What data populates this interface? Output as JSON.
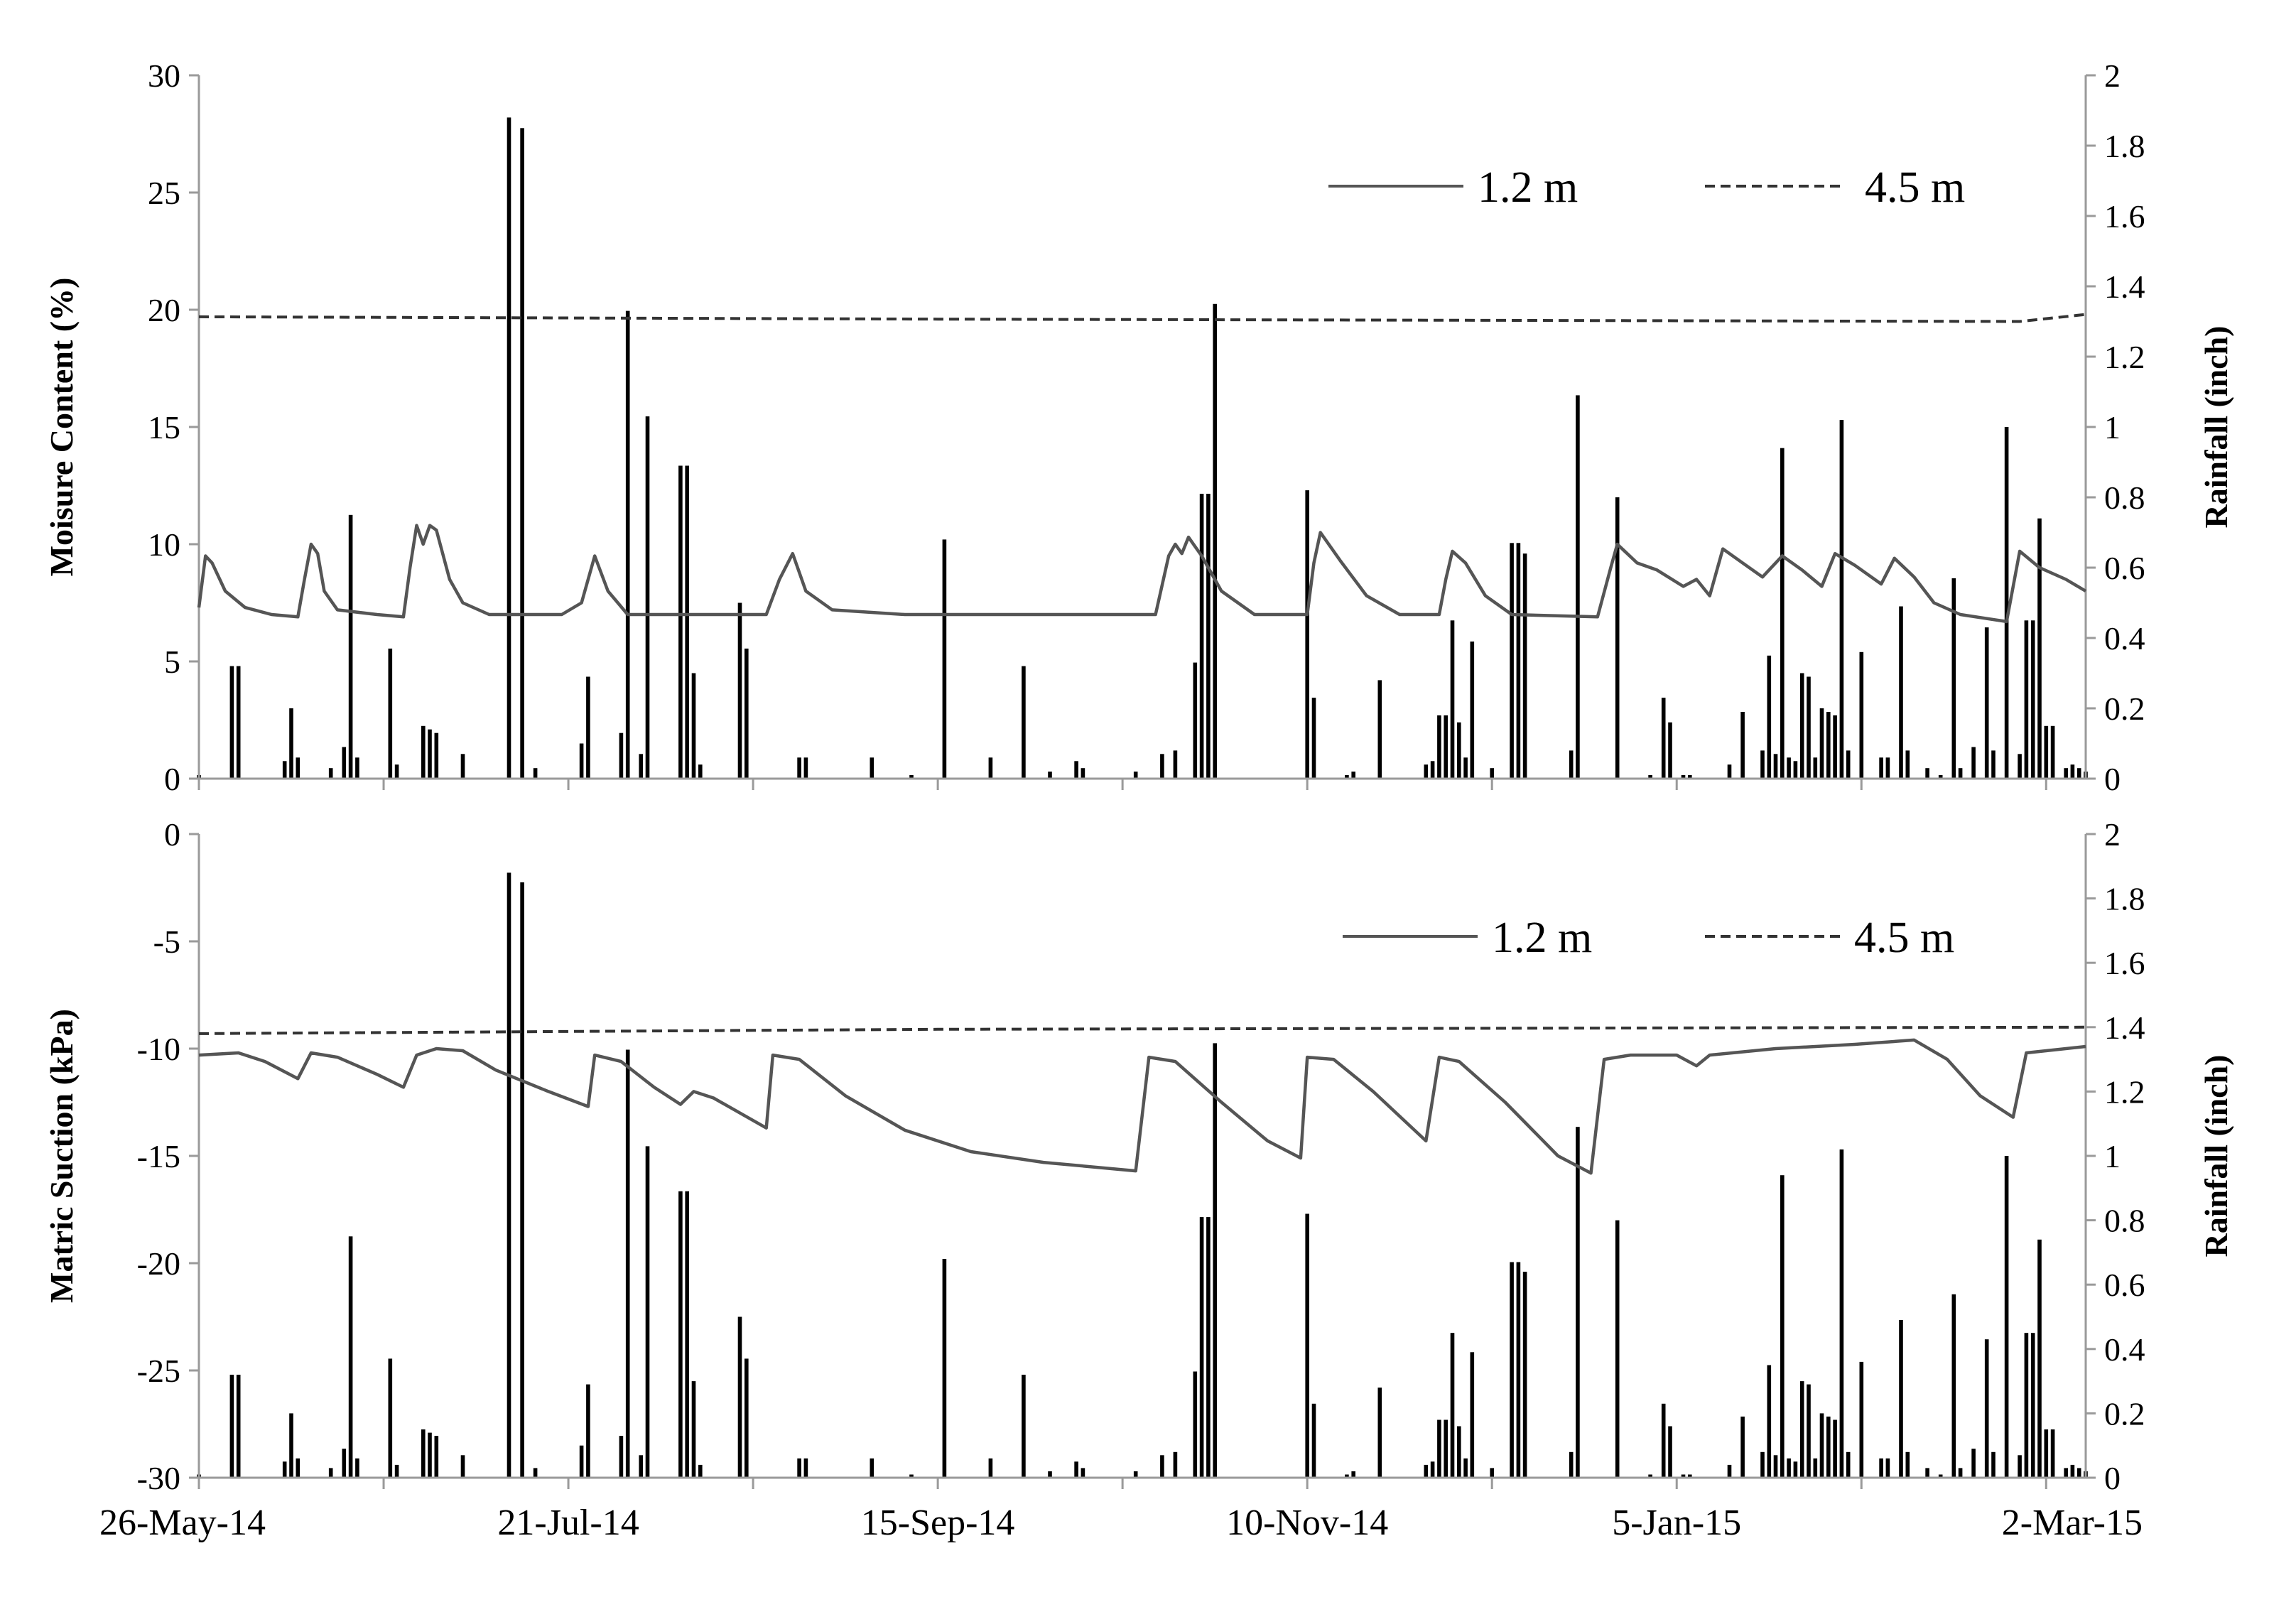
{
  "chart_data": [
    {
      "type": "line",
      "panel": "top",
      "ylabel": "Moisure Content (%)",
      "y2label": "Rainfall (inch)",
      "ylim": [
        0,
        30
      ],
      "y_ticks": [
        0,
        5,
        10,
        15,
        20,
        25,
        30
      ],
      "y2lim": [
        0,
        2
      ],
      "y2_ticks": [
        0,
        0.2,
        0.4,
        0.6,
        0.8,
        1,
        1.2,
        1.4,
        1.6,
        1.8,
        2
      ],
      "y2_tick_labels": [
        "0",
        "0.2",
        "0.4",
        "0.6",
        "0.8",
        "1",
        "1.2",
        "1.4",
        "1.6",
        "1.8",
        "2"
      ],
      "grid": false,
      "legend_position": "top-right",
      "series": [
        {
          "name": "1.2 m",
          "style": "solid",
          "color": "#555555",
          "points": [
            [
              "2014-05-26",
              7.3
            ],
            [
              "2014-05-27",
              9.5
            ],
            [
              "2014-05-28",
              9.2
            ],
            [
              "2014-05-30",
              8.0
            ],
            [
              "2014-06-02",
              7.3
            ],
            [
              "2014-06-06",
              7.0
            ],
            [
              "2014-06-10",
              6.9
            ],
            [
              "2014-06-11",
              8.5
            ],
            [
              "2014-06-12",
              10.0
            ],
            [
              "2014-06-13",
              9.6
            ],
            [
              "2014-06-14",
              8.0
            ],
            [
              "2014-06-16",
              7.2
            ],
            [
              "2014-06-22",
              7.0
            ],
            [
              "2014-06-26",
              6.9
            ],
            [
              "2014-06-27",
              9.0
            ],
            [
              "2014-06-28",
              10.8
            ],
            [
              "2014-06-29",
              10.0
            ],
            [
              "2014-06-30",
              10.8
            ],
            [
              "2014-07-01",
              10.6
            ],
            [
              "2014-07-03",
              8.5
            ],
            [
              "2014-07-05",
              7.5
            ],
            [
              "2014-07-09",
              7.0
            ],
            [
              "2014-07-20",
              7.0
            ],
            [
              "2014-07-23",
              7.5
            ],
            [
              "2014-07-25",
              9.5
            ],
            [
              "2014-07-27",
              8.0
            ],
            [
              "2014-07-30",
              7.0
            ],
            [
              "2014-08-20",
              7.0
            ],
            [
              "2014-08-22",
              8.5
            ],
            [
              "2014-08-24",
              9.6
            ],
            [
              "2014-08-26",
              8.0
            ],
            [
              "2014-08-30",
              7.2
            ],
            [
              "2014-09-10",
              7.0
            ],
            [
              "2014-10-18",
              7.0
            ],
            [
              "2014-10-20",
              9.5
            ],
            [
              "2014-10-21",
              10.0
            ],
            [
              "2014-10-22",
              9.6
            ],
            [
              "2014-10-23",
              10.3
            ],
            [
              "2014-10-25",
              9.5
            ],
            [
              "2014-10-28",
              8.0
            ],
            [
              "2014-11-02",
              7.0
            ],
            [
              "2014-11-10",
              7.0
            ],
            [
              "2014-11-11",
              9.2
            ],
            [
              "2014-11-12",
              10.5
            ],
            [
              "2014-11-15",
              9.3
            ],
            [
              "2014-11-19",
              7.8
            ],
            [
              "2014-11-24",
              7.0
            ],
            [
              "2014-11-30",
              7.0
            ],
            [
              "2014-12-01",
              8.5
            ],
            [
              "2014-12-02",
              9.7
            ],
            [
              "2014-12-04",
              9.2
            ],
            [
              "2014-12-07",
              7.8
            ],
            [
              "2014-12-11",
              7.0
            ],
            [
              "2014-12-24",
              6.9
            ],
            [
              "2014-12-26",
              9.0
            ],
            [
              "2014-12-27",
              10.0
            ],
            [
              "2014-12-30",
              9.2
            ],
            [
              "2015-01-02",
              8.9
            ],
            [
              "2015-01-06",
              8.2
            ],
            [
              "2015-01-08",
              8.5
            ],
            [
              "2015-01-10",
              7.8
            ],
            [
              "2015-01-12",
              9.8
            ],
            [
              "2015-01-15",
              9.2
            ],
            [
              "2015-01-18",
              8.6
            ],
            [
              "2015-01-21",
              9.5
            ],
            [
              "2015-01-24",
              8.9
            ],
            [
              "2015-01-27",
              8.2
            ],
            [
              "2015-01-29",
              9.6
            ],
            [
              "2015-02-01",
              9.1
            ],
            [
              "2015-02-05",
              8.3
            ],
            [
              "2015-02-07",
              9.4
            ],
            [
              "2015-02-10",
              8.6
            ],
            [
              "2015-02-13",
              7.5
            ],
            [
              "2015-02-17",
              7.0
            ],
            [
              "2015-02-24",
              6.7
            ],
            [
              "2015-02-26",
              9.7
            ],
            [
              "2015-03-01",
              9.0
            ],
            [
              "2015-03-05",
              8.5
            ],
            [
              "2015-03-08",
              8.0
            ]
          ]
        },
        {
          "name": "4.5 m",
          "style": "dashed",
          "color": "#333333",
          "points": [
            [
              "2014-05-26",
              19.7
            ],
            [
              "2014-09-15",
              19.6
            ],
            [
              "2015-02-26",
              19.5
            ],
            [
              "2015-03-08",
              19.8
            ]
          ]
        }
      ]
    },
    {
      "type": "line",
      "panel": "bottom",
      "ylabel": "Matric Suction (kPa)",
      "y2label": "Rainfall (inch)",
      "ylim": [
        -30,
        0
      ],
      "y_ticks": [
        -30,
        -25,
        -20,
        -15,
        -10,
        -5,
        0
      ],
      "y2lim": [
        0,
        2
      ],
      "y2_ticks": [
        0,
        0.2,
        0.4,
        0.6,
        0.8,
        1,
        1.2,
        1.4,
        1.6,
        1.8,
        2
      ],
      "y2_tick_labels": [
        "0",
        "0.2",
        "0.4",
        "0.6",
        "0.8",
        "1",
        "1.2",
        "1.4",
        "1.6",
        "1.8",
        "2"
      ],
      "grid": false,
      "legend_position": "top-right",
      "series": [
        {
          "name": "1.2 m",
          "style": "solid",
          "color": "#555555",
          "points": [
            [
              "2014-05-26",
              -10.3
            ],
            [
              "2014-06-01",
              -10.2
            ],
            [
              "2014-06-05",
              -10.6
            ],
            [
              "2014-06-10",
              -11.4
            ],
            [
              "2014-06-12",
              -10.2
            ],
            [
              "2014-06-16",
              -10.4
            ],
            [
              "2014-06-22",
              -11.2
            ],
            [
              "2014-06-26",
              -11.8
            ],
            [
              "2014-06-28",
              -10.3
            ],
            [
              "2014-07-01",
              -10.0
            ],
            [
              "2014-07-05",
              -10.1
            ],
            [
              "2014-07-10",
              -11.0
            ],
            [
              "2014-07-18",
              -12.0
            ],
            [
              "2014-07-24",
              -12.7
            ],
            [
              "2014-07-25",
              -10.3
            ],
            [
              "2014-07-29",
              -10.6
            ],
            [
              "2014-08-03",
              -11.8
            ],
            [
              "2014-08-07",
              -12.6
            ],
            [
              "2014-08-09",
              -12.0
            ],
            [
              "2014-08-12",
              -12.3
            ],
            [
              "2014-08-20",
              -13.7
            ],
            [
              "2014-08-21",
              -10.3
            ],
            [
              "2014-08-25",
              -10.5
            ],
            [
              "2014-09-01",
              -12.2
            ],
            [
              "2014-09-10",
              -13.8
            ],
            [
              "2014-09-20",
              -14.8
            ],
            [
              "2014-10-01",
              -15.3
            ],
            [
              "2014-10-15",
              -15.7
            ],
            [
              "2014-10-17",
              -10.4
            ],
            [
              "2014-10-21",
              -10.6
            ],
            [
              "2014-10-28",
              -12.5
            ],
            [
              "2014-11-04",
              -14.3
            ],
            [
              "2014-11-09",
              -15.1
            ],
            [
              "2014-11-10",
              -10.4
            ],
            [
              "2014-11-14",
              -10.5
            ],
            [
              "2014-11-20",
              -12.0
            ],
            [
              "2014-11-28",
              -14.3
            ],
            [
              "2014-11-30",
              -10.4
            ],
            [
              "2014-12-03",
              -10.6
            ],
            [
              "2014-12-10",
              -12.5
            ],
            [
              "2014-12-18",
              -15.0
            ],
            [
              "2014-12-23",
              -15.8
            ],
            [
              "2014-12-25",
              -10.5
            ],
            [
              "2014-12-29",
              -10.3
            ],
            [
              "2015-01-05",
              -10.3
            ],
            [
              "2015-01-08",
              -10.8
            ],
            [
              "2015-01-10",
              -10.3
            ],
            [
              "2015-01-20",
              -10.0
            ],
            [
              "2015-02-01",
              -9.8
            ],
            [
              "2015-02-10",
              -9.6
            ],
            [
              "2015-02-15",
              -10.5
            ],
            [
              "2015-02-20",
              -12.2
            ],
            [
              "2015-02-25",
              -13.2
            ],
            [
              "2015-02-27",
              -10.2
            ],
            [
              "2015-03-08",
              -9.9
            ]
          ]
        },
        {
          "name": "4.5 m",
          "style": "dashed",
          "color": "#333333",
          "points": [
            [
              "2014-05-26",
              -9.3
            ],
            [
              "2014-09-15",
              -9.1
            ],
            [
              "2015-03-08",
              -9.0
            ]
          ]
        }
      ]
    }
  ],
  "rainfall": {
    "series_name": "Rainfall (inch)",
    "color": "#000000",
    "bars": [
      [
        "2014-05-26",
        0.01
      ],
      [
        "2014-05-31",
        0.32
      ],
      [
        "2014-06-01",
        0.32
      ],
      [
        "2014-06-08",
        0.05
      ],
      [
        "2014-06-09",
        0.2
      ],
      [
        "2014-06-10",
        0.06
      ],
      [
        "2014-06-15",
        0.03
      ],
      [
        "2014-06-17",
        0.09
      ],
      [
        "2014-06-18",
        0.75
      ],
      [
        "2014-06-19",
        0.06
      ],
      [
        "2014-06-24",
        0.37
      ],
      [
        "2014-06-25",
        0.04
      ],
      [
        "2014-06-29",
        0.15
      ],
      [
        "2014-06-30",
        0.14
      ],
      [
        "2014-07-01",
        0.13
      ],
      [
        "2014-07-05",
        0.07
      ],
      [
        "2014-07-12",
        1.88
      ],
      [
        "2014-07-14",
        1.85
      ],
      [
        "2014-07-16",
        0.03
      ],
      [
        "2014-07-23",
        0.1
      ],
      [
        "2014-07-24",
        0.29
      ],
      [
        "2014-07-29",
        0.13
      ],
      [
        "2014-07-30",
        1.33
      ],
      [
        "2014-08-01",
        0.07
      ],
      [
        "2014-08-02",
        1.03
      ],
      [
        "2014-08-07",
        0.89
      ],
      [
        "2014-08-08",
        0.89
      ],
      [
        "2014-08-09",
        0.3
      ],
      [
        "2014-08-10",
        0.04
      ],
      [
        "2014-08-16",
        0.5
      ],
      [
        "2014-08-17",
        0.37
      ],
      [
        "2014-08-25",
        0.06
      ],
      [
        "2014-08-26",
        0.06
      ],
      [
        "2014-09-05",
        0.06
      ],
      [
        "2014-09-11",
        0.01
      ],
      [
        "2014-09-16",
        0.68
      ],
      [
        "2014-09-23",
        0.06
      ],
      [
        "2014-09-28",
        0.32
      ],
      [
        "2014-10-02",
        0.02
      ],
      [
        "2014-10-06",
        0.05
      ],
      [
        "2014-10-07",
        0.03
      ],
      [
        "2014-10-15",
        0.02
      ],
      [
        "2014-10-19",
        0.07
      ],
      [
        "2014-10-21",
        0.08
      ],
      [
        "2014-10-24",
        0.33
      ],
      [
        "2014-10-25",
        0.81
      ],
      [
        "2014-10-26",
        0.81
      ],
      [
        "2014-10-27",
        1.35
      ],
      [
        "2014-11-10",
        0.82
      ],
      [
        "2014-11-11",
        0.23
      ],
      [
        "2014-11-16",
        0.01
      ],
      [
        "2014-11-17",
        0.02
      ],
      [
        "2014-11-21",
        0.28
      ],
      [
        "2014-11-28",
        0.04
      ],
      [
        "2014-11-29",
        0.05
      ],
      [
        "2014-11-30",
        0.18
      ],
      [
        "2014-12-01",
        0.18
      ],
      [
        "2014-12-02",
        0.45
      ],
      [
        "2014-12-03",
        0.16
      ],
      [
        "2014-12-04",
        0.06
      ],
      [
        "2014-12-05",
        0.39
      ],
      [
        "2014-12-08",
        0.03
      ],
      [
        "2014-12-11",
        0.67
      ],
      [
        "2014-12-12",
        0.67
      ],
      [
        "2014-12-13",
        0.64
      ],
      [
        "2014-12-20",
        0.08
      ],
      [
        "2014-12-21",
        1.09
      ],
      [
        "2014-12-27",
        0.8
      ],
      [
        "2015-01-01",
        0.01
      ],
      [
        "2015-01-03",
        0.23
      ],
      [
        "2015-01-04",
        0.16
      ],
      [
        "2015-01-06",
        0.01
      ],
      [
        "2015-01-07",
        0.01
      ],
      [
        "2015-01-13",
        0.04
      ],
      [
        "2015-01-15",
        0.19
      ],
      [
        "2015-01-18",
        0.08
      ],
      [
        "2015-01-19",
        0.35
      ],
      [
        "2015-01-20",
        0.07
      ],
      [
        "2015-01-21",
        0.94
      ],
      [
        "2015-01-22",
        0.06
      ],
      [
        "2015-01-23",
        0.05
      ],
      [
        "2015-01-24",
        0.3
      ],
      [
        "2015-01-25",
        0.29
      ],
      [
        "2015-01-26",
        0.06
      ],
      [
        "2015-01-27",
        0.2
      ],
      [
        "2015-01-28",
        0.19
      ],
      [
        "2015-01-29",
        0.18
      ],
      [
        "2015-01-30",
        1.02
      ],
      [
        "2015-01-31",
        0.08
      ],
      [
        "2015-02-02",
        0.36
      ],
      [
        "2015-02-05",
        0.06
      ],
      [
        "2015-02-06",
        0.06
      ],
      [
        "2015-02-08",
        0.49
      ],
      [
        "2015-02-09",
        0.08
      ],
      [
        "2015-02-12",
        0.03
      ],
      [
        "2015-02-14",
        0.01
      ],
      [
        "2015-02-16",
        0.57
      ],
      [
        "2015-02-17",
        0.03
      ],
      [
        "2015-02-19",
        0.09
      ],
      [
        "2015-02-21",
        0.43
      ],
      [
        "2015-02-22",
        0.08
      ],
      [
        "2015-02-24",
        1.0
      ],
      [
        "2015-02-26",
        0.07
      ],
      [
        "2015-02-27",
        0.45
      ],
      [
        "2015-02-28",
        0.45
      ],
      [
        "2015-03-01",
        0.74
      ],
      [
        "2015-03-02",
        0.15
      ],
      [
        "2015-03-03",
        0.15
      ],
      [
        "2015-03-05",
        0.03
      ],
      [
        "2015-03-06",
        0.04
      ],
      [
        "2015-03-07",
        0.03
      ],
      [
        "2015-03-08",
        0.02
      ]
    ]
  },
  "x_axis": {
    "start": "2014-05-26",
    "end": "2015-03-08",
    "tick_dates": [
      "2014-05-26",
      "2014-07-21",
      "2014-09-15",
      "2014-11-10",
      "2015-01-05",
      "2015-03-02"
    ],
    "tick_labels": [
      "26-May-14",
      "21-Jul-14",
      "15-Sep-14",
      "10-Nov-14",
      "5-Jan-15",
      "2-Mar-15"
    ],
    "minor_tick_dates": [
      "2014-06-23",
      "2014-08-18",
      "2014-10-13",
      "2014-12-08",
      "2015-02-02"
    ]
  }
}
